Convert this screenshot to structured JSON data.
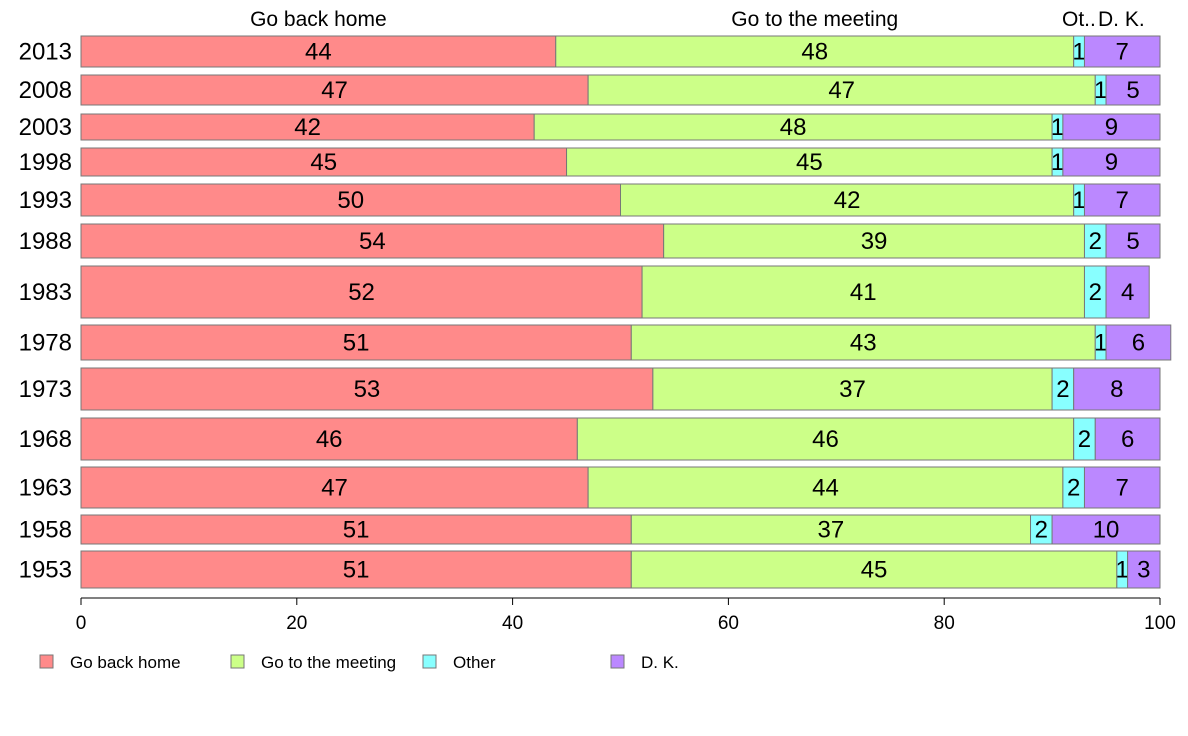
{
  "chart_data": {
    "type": "bar",
    "orientation": "horizontal",
    "stacked": true,
    "categories": [
      "2013",
      "2008",
      "2003",
      "1998",
      "1993",
      "1988",
      "1983",
      "1978",
      "1973",
      "1968",
      "1963",
      "1958",
      "1953"
    ],
    "series": [
      {
        "name": "Go back home",
        "color": "#ff8a8a",
        "values": [
          44,
          47,
          42,
          45,
          50,
          54,
          52,
          51,
          53,
          46,
          47,
          51,
          51
        ]
      },
      {
        "name": "Go to the meeting",
        "color": "#ccff88",
        "values": [
          48,
          47,
          48,
          45,
          42,
          39,
          41,
          43,
          37,
          46,
          44,
          37,
          45
        ]
      },
      {
        "name": "Other",
        "color": "#88ffff",
        "values": [
          1,
          1,
          1,
          1,
          1,
          2,
          2,
          1,
          2,
          2,
          2,
          2,
          1
        ]
      },
      {
        "name": "D. K.",
        "color": "#bb88ff",
        "values": [
          7,
          5,
          9,
          9,
          7,
          5,
          4,
          6,
          8,
          6,
          7,
          10,
          3
        ]
      }
    ],
    "column_headers": [
      "Go back home",
      "Go to the meeting",
      "Ot..",
      "D. K."
    ],
    "xlim": [
      0,
      100
    ],
    "xticks": [
      0,
      20,
      40,
      60,
      80,
      100
    ],
    "legend_position": "bottom-left",
    "grid": false
  }
}
